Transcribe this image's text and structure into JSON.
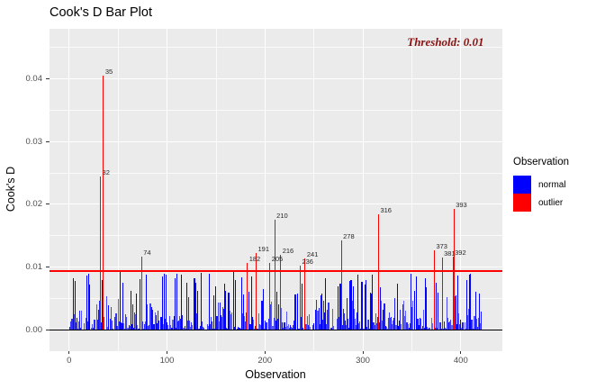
{
  "chart_data": {
    "type": "bar",
    "title": "Cook's D Bar Plot",
    "xlabel": "Observation",
    "ylabel": "Cook's D",
    "xlim": [
      -20,
      442
    ],
    "ylim": [
      -0.0033,
      0.048
    ],
    "x_ticks": {
      "values": [
        0,
        100,
        200,
        300,
        400
      ],
      "labels": [
        "0",
        "100",
        "200",
        "300",
        "400"
      ],
      "minor": [
        50,
        150,
        250,
        350,
        450
      ]
    },
    "y_ticks": {
      "values": [
        0,
        0.01,
        0.02,
        0.03,
        0.04
      ],
      "labels": [
        "0.00",
        "0.01",
        "0.02",
        "0.03",
        "0.04"
      ],
      "minor": [
        0.005,
        0.015,
        0.025,
        0.035,
        0.045
      ]
    },
    "grid": true,
    "panel_background": "#EBEBEB",
    "gridline_color": "#FFFFFF",
    "tick_label_color": "#4D4D4D",
    "zero_line": {
      "value": 0,
      "color": "#000000"
    },
    "threshold_line": {
      "value": 0.0094,
      "color": "#FF0000"
    },
    "annotation": {
      "text": "Threshold: 0.01",
      "color": "#8B1212"
    },
    "series_colors": {
      "normal": "#0000FF",
      "outlier": "#FF0000"
    },
    "n_observations": 421,
    "outliers": [
      {
        "obs": 32,
        "label": "32",
        "value": 0.0244
      },
      {
        "obs": 35,
        "label": "35",
        "value": 0.0405
      },
      {
        "obs": 74,
        "label": "74",
        "value": 0.0117
      },
      {
        "obs": 182,
        "label": "182",
        "value": 0.0106
      },
      {
        "obs": 191,
        "label": "191",
        "value": 0.0122
      },
      {
        "obs": 205,
        "label": "205",
        "value": 0.0106
      },
      {
        "obs": 210,
        "label": "210",
        "value": 0.0176
      },
      {
        "obs": 216,
        "label": "216",
        "value": 0.012
      },
      {
        "obs": 236,
        "label": "236",
        "value": 0.0103
      },
      {
        "obs": 241,
        "label": "241",
        "value": 0.0114
      },
      {
        "obs": 278,
        "label": "278",
        "value": 0.0142
      },
      {
        "obs": 316,
        "label": "316",
        "value": 0.0184
      },
      {
        "obs": 373,
        "label": "373",
        "value": 0.0127
      },
      {
        "obs": 381,
        "label": "381",
        "value": 0.0116
      },
      {
        "obs": 392,
        "label": "392",
        "value": 0.0117
      },
      {
        "obs": 393,
        "label": "393",
        "value": 0.0193
      }
    ],
    "tall_normal_bars": [
      [
        4,
        0.0082
      ],
      [
        6,
        0.0078
      ],
      [
        18,
        0.0086
      ],
      [
        20,
        0.009
      ],
      [
        43,
        0.0037
      ],
      [
        52,
        0.0093
      ],
      [
        55,
        0.0075
      ],
      [
        63,
        0.0062
      ],
      [
        79,
        0.0088
      ],
      [
        97,
        0.009
      ],
      [
        99,
        0.0088
      ],
      [
        110,
        0.0089
      ],
      [
        120,
        0.0075
      ],
      [
        135,
        0.0091
      ],
      [
        143,
        0.0089
      ],
      [
        150,
        0.007
      ],
      [
        168,
        0.0093
      ],
      [
        170,
        0.008
      ],
      [
        186,
        0.0085
      ],
      [
        198,
        0.0065
      ],
      [
        262,
        0.0083
      ],
      [
        290,
        0.007
      ],
      [
        303,
        0.008
      ],
      [
        310,
        0.0088
      ],
      [
        349,
        0.009
      ],
      [
        355,
        0.0085
      ],
      [
        364,
        0.0082
      ],
      [
        377,
        0.006
      ],
      [
        395,
        0.0055
      ],
      [
        406,
        0.0079
      ],
      [
        419,
        0.0058
      ]
    ],
    "normal_bars_generation": {
      "approximate": true,
      "seed": 1337,
      "mean": 0.0023,
      "max": 0.0093,
      "near_zero_fraction": 0.07
    }
  },
  "legend": {
    "title": "Observation",
    "items": [
      {
        "label": "normal",
        "color": "#0000FF"
      },
      {
        "label": "outlier",
        "color": "#FF0000"
      }
    ]
  }
}
